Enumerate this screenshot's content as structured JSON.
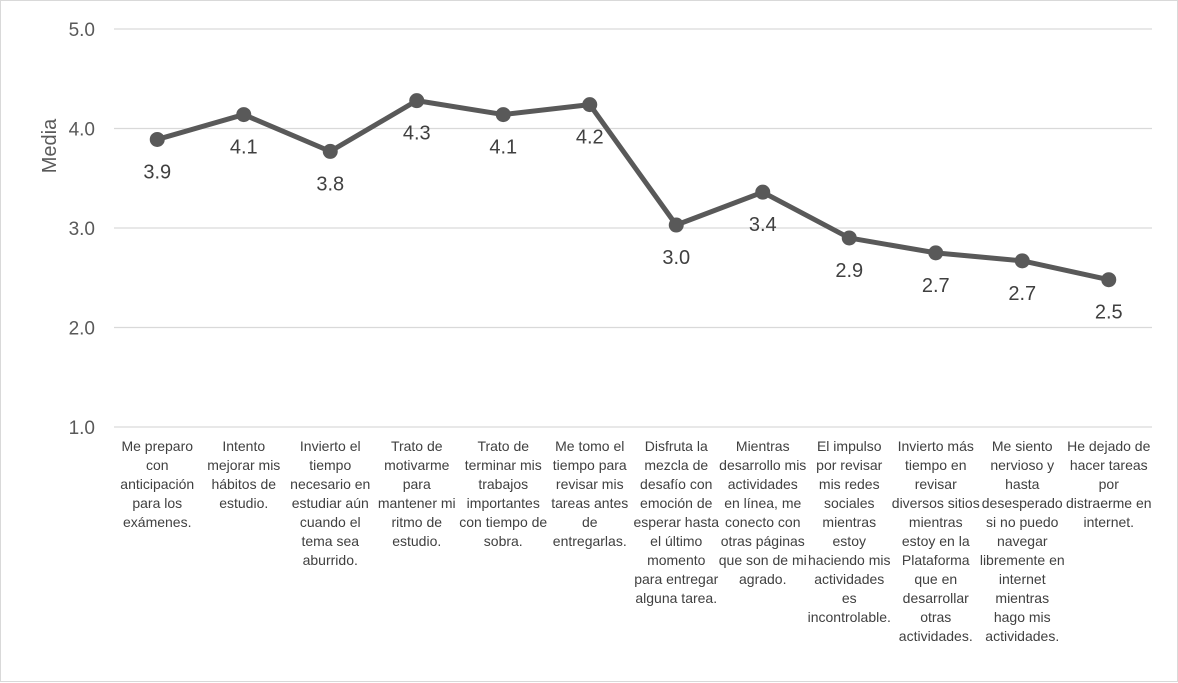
{
  "chart_data": {
    "type": "line",
    "title": "",
    "xlabel": "",
    "ylabel": "Media",
    "ylim": [
      1.0,
      5.0
    ],
    "yticks": [
      "1.0",
      "2.0",
      "3.0",
      "4.0",
      "5.0"
    ],
    "grid": true,
    "line_color": "#595959",
    "grid_color": "#d9d9d9",
    "categories": [
      "Me preparo con anticipación para los exámenes.",
      "Intento mejorar mis hábitos de estudio.",
      "Invierto el tiempo necesario en estudiar aún cuando el tema sea aburrido.",
      "Trato de motivarme para mantener mi ritmo de estudio.",
      "Trato de terminar mis trabajos importantes con tiempo de sobra.",
      "Me tomo el tiempo para revisar mis tareas antes de entregarlas.",
      "Disfruta la mezcla de desafío con emoción de esperar hasta el último momento para entregar alguna tarea.",
      "Mientras desarrollo mis actividades en línea, me conecto con otras páginas que son de mi agrado.",
      "El impulso por revisar mis redes sociales mientras estoy haciendo mis actividades es incontrolable.",
      "Invierto más tiempo en revisar diversos sitios mientras estoy en la Plataforma que en desarrollar otras actividades.",
      "Me siento nervioso y hasta desesperado si no puedo navegar libremente en internet mientras hago mis actividades.",
      "He dejado de hacer tareas por distraerme en internet."
    ],
    "values": [
      3.89,
      4.14,
      3.77,
      4.28,
      4.14,
      4.24,
      3.03,
      3.36,
      2.9,
      2.75,
      2.67,
      2.48
    ],
    "data_labels": [
      "3.9",
      "4.1",
      "3.8",
      "4.3",
      "4.1",
      "4.2",
      "3.0",
      "3.4",
      "2.9",
      "2.7",
      "2.7",
      "2.5"
    ],
    "label_position": [
      "below",
      "below",
      "below",
      "below",
      "below",
      "below",
      "below",
      "below",
      "below",
      "below",
      "below",
      "below"
    ]
  }
}
